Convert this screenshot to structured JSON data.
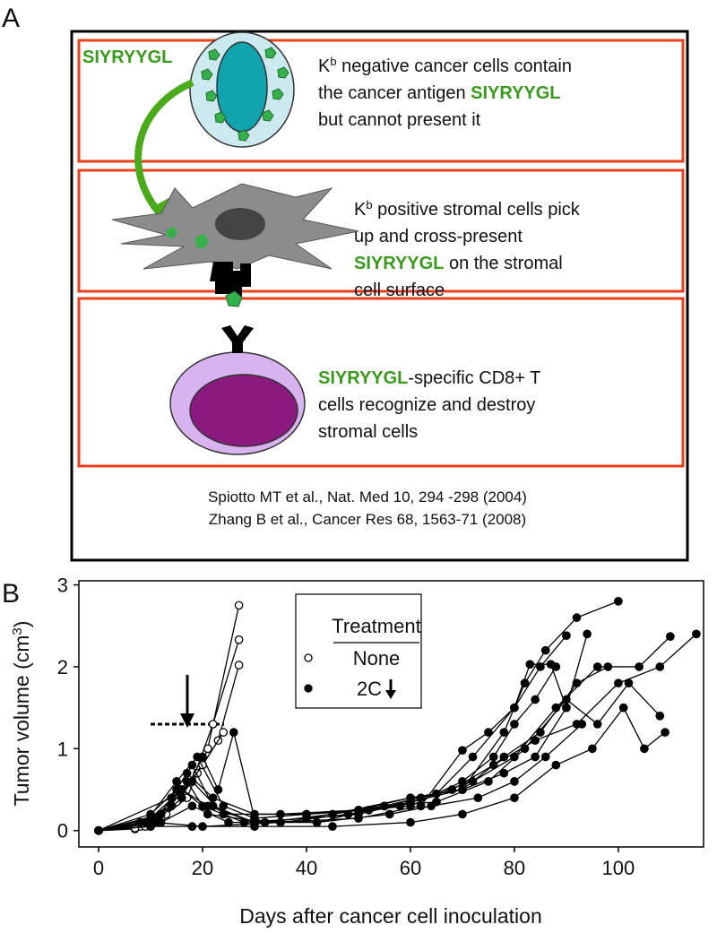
{
  "panel_a": {
    "label": "A",
    "tag": "SIYRYYGL",
    "boxes": [
      {
        "lines": [
          [
            {
              "text": "K"
            },
            {
              "text": "b",
              "sup": true
            },
            {
              "text": " negative cancer cells contain"
            }
          ],
          [
            {
              "text": "the cancer antigen "
            },
            {
              "text": "SIYRYYGL",
              "green": true
            }
          ],
          [
            {
              "text": "but cannot present it"
            }
          ]
        ]
      },
      {
        "lines": [
          [
            {
              "text": "K"
            },
            {
              "text": "b",
              "sup": true
            },
            {
              "text": " positive stromal cells pick"
            }
          ],
          [
            {
              "text": "up and cross-present"
            }
          ],
          [
            {
              "text": "SIYRYYGL",
              "green": true
            },
            {
              "text": " on the stromal"
            }
          ],
          [
            {
              "text": "cell surface"
            }
          ]
        ]
      },
      {
        "lines": [
          [
            {
              "text": "SIYRYYGL",
              "green": true
            },
            {
              "text": "-specific CD8+  T"
            }
          ],
          [
            {
              "text": "cells recognize and destroy"
            }
          ],
          [
            {
              "text": "stromal cells"
            }
          ]
        ]
      }
    ],
    "citations": [
      "Spiotto MT et al., Nat. Med 10, 294 -298 (2004)",
      "Zhang B et al., Cancer Res 68, 1563-71 (2008)"
    ]
  },
  "chart_data": {
    "type": "line",
    "panel_label": "B",
    "xlabel": "Days after cancer cell inoculation",
    "ylabel": [
      {
        "text": "Tumor volume (cm"
      },
      {
        "text": "3",
        "sup": true
      },
      {
        "text": ")"
      }
    ],
    "xlim": [
      -3.8,
      116.4
    ],
    "ylim": [
      -0.2,
      3.05
    ],
    "xticks": [
      0,
      20,
      40,
      60,
      80,
      100
    ],
    "yticks": [
      0,
      1,
      2,
      3
    ],
    "legend": {
      "title": "Treatment",
      "entries": [
        {
          "label": "None",
          "marker": "open"
        },
        {
          "label": "2C",
          "marker": "filled"
        }
      ]
    },
    "series": [
      {
        "marker": "open",
        "x": [
          0,
          7,
          12,
          17,
          21,
          27
        ],
        "values": [
          0,
          0.02,
          0.15,
          0.4,
          1.0,
          2.75
        ]
      },
      {
        "marker": "open",
        "x": [
          0,
          8,
          13,
          18,
          22,
          27
        ],
        "values": [
          0,
          0.05,
          0.2,
          0.6,
          1.3,
          2.33
        ]
      },
      {
        "marker": "open",
        "x": [
          0,
          7,
          14,
          19,
          23,
          27
        ],
        "values": [
          0,
          0.03,
          0.3,
          0.7,
          1.1,
          2.02
        ]
      },
      {
        "marker": "open",
        "x": [
          0,
          9,
          15,
          20,
          24
        ],
        "values": [
          0,
          0.05,
          0.35,
          0.8,
          1.2
        ]
      },
      {
        "marker": "filled",
        "x": [
          0,
          10,
          15,
          18,
          22,
          30,
          40,
          50,
          60,
          70,
          78,
          82,
          86,
          92,
          100
        ],
        "values": [
          0,
          0.2,
          0.5,
          0.8,
          0.3,
          0.1,
          0.15,
          0.2,
          0.35,
          0.5,
          1.2,
          1.8,
          2.2,
          2.6,
          2.8
        ]
      },
      {
        "marker": "filled",
        "x": [
          0,
          8,
          14,
          17,
          21,
          30,
          42,
          55,
          65,
          72,
          80,
          85,
          90
        ],
        "values": [
          0,
          0.1,
          0.3,
          0.6,
          0.2,
          0.12,
          0.1,
          0.3,
          0.45,
          0.9,
          1.5,
          2.0,
          2.38
        ]
      },
      {
        "marker": "filled",
        "x": [
          0,
          10,
          16,
          20,
          23,
          26,
          30,
          40,
          52,
          62,
          72,
          80,
          88,
          96,
          104,
          110
        ],
        "values": [
          0,
          0.05,
          0.4,
          0.9,
          0.5,
          1.2,
          0.15,
          0.2,
          0.25,
          0.4,
          0.6,
          0.9,
          1.5,
          2.0,
          2.0,
          2.37
        ]
      },
      {
        "marker": "filled",
        "x": [
          0,
          12,
          18,
          25,
          35,
          48,
          58,
          68,
          76,
          84,
          92,
          100,
          108,
          115
        ],
        "values": [
          0,
          0.1,
          0.3,
          0.1,
          0.1,
          0.2,
          0.3,
          0.5,
          0.8,
          1.1,
          1.3,
          1.8,
          2.0,
          2.4
        ]
      },
      {
        "marker": "filled",
        "x": [
          0,
          9,
          15,
          19,
          24,
          32,
          45,
          60,
          70,
          78,
          85,
          92,
          98
        ],
        "values": [
          0,
          0.1,
          0.6,
          0.9,
          0.3,
          0.1,
          0.2,
          0.4,
          0.5,
          0.9,
          1.2,
          1.8,
          2.0
        ]
      },
      {
        "marker": "filled",
        "x": [
          0,
          10,
          18,
          30,
          45,
          60,
          70,
          80,
          88,
          95,
          101,
          105,
          109
        ],
        "values": [
          0,
          0.05,
          0.05,
          0.05,
          0.05,
          0.1,
          0.2,
          0.4,
          0.8,
          1.0,
          1.5,
          1.0,
          1.2
        ]
      },
      {
        "marker": "filled",
        "x": [
          0,
          10,
          16,
          20,
          28,
          40,
          55,
          65,
          75,
          82,
          90,
          96,
          102,
          108
        ],
        "values": [
          0,
          0.1,
          0.5,
          0.3,
          0.1,
          0.15,
          0.3,
          0.35,
          0.6,
          1.0,
          1.6,
          1.3,
          1.8,
          1.4
        ]
      },
      {
        "marker": "filled",
        "x": [
          0,
          12,
          17,
          22,
          30,
          40,
          50,
          60,
          70,
          78,
          84,
          90,
          94
        ],
        "values": [
          0,
          0.2,
          0.7,
          0.4,
          0.2,
          0.2,
          0.25,
          0.4,
          0.5,
          0.7,
          0.9,
          1.5,
          2.4
        ]
      },
      {
        "marker": "filled",
        "x": [
          0,
          11,
          20,
          35,
          50,
          62,
          70,
          75,
          80,
          83,
          87,
          90
        ],
        "values": [
          0,
          0.1,
          0.05,
          0.1,
          0.15,
          0.3,
          0.98,
          1.2,
          1.5,
          2.03,
          2.03,
          1.5
        ]
      },
      {
        "marker": "filled",
        "x": [
          0,
          10,
          16,
          21,
          30,
          42,
          56,
          64,
          73,
          80,
          86,
          93
        ],
        "values": [
          0,
          0.15,
          0.5,
          0.3,
          0.1,
          0.1,
          0.2,
          0.3,
          0.4,
          0.6,
          0.9,
          1.3
        ]
      },
      {
        "marker": "filled",
        "x": [
          0,
          14,
          18,
          24,
          35,
          50,
          60,
          70,
          76,
          80,
          84,
          88
        ],
        "values": [
          0,
          0.4,
          0.6,
          0.2,
          0.2,
          0.25,
          0.3,
          0.6,
          0.9,
          1.3,
          1.6,
          2.0
        ]
      }
    ]
  }
}
